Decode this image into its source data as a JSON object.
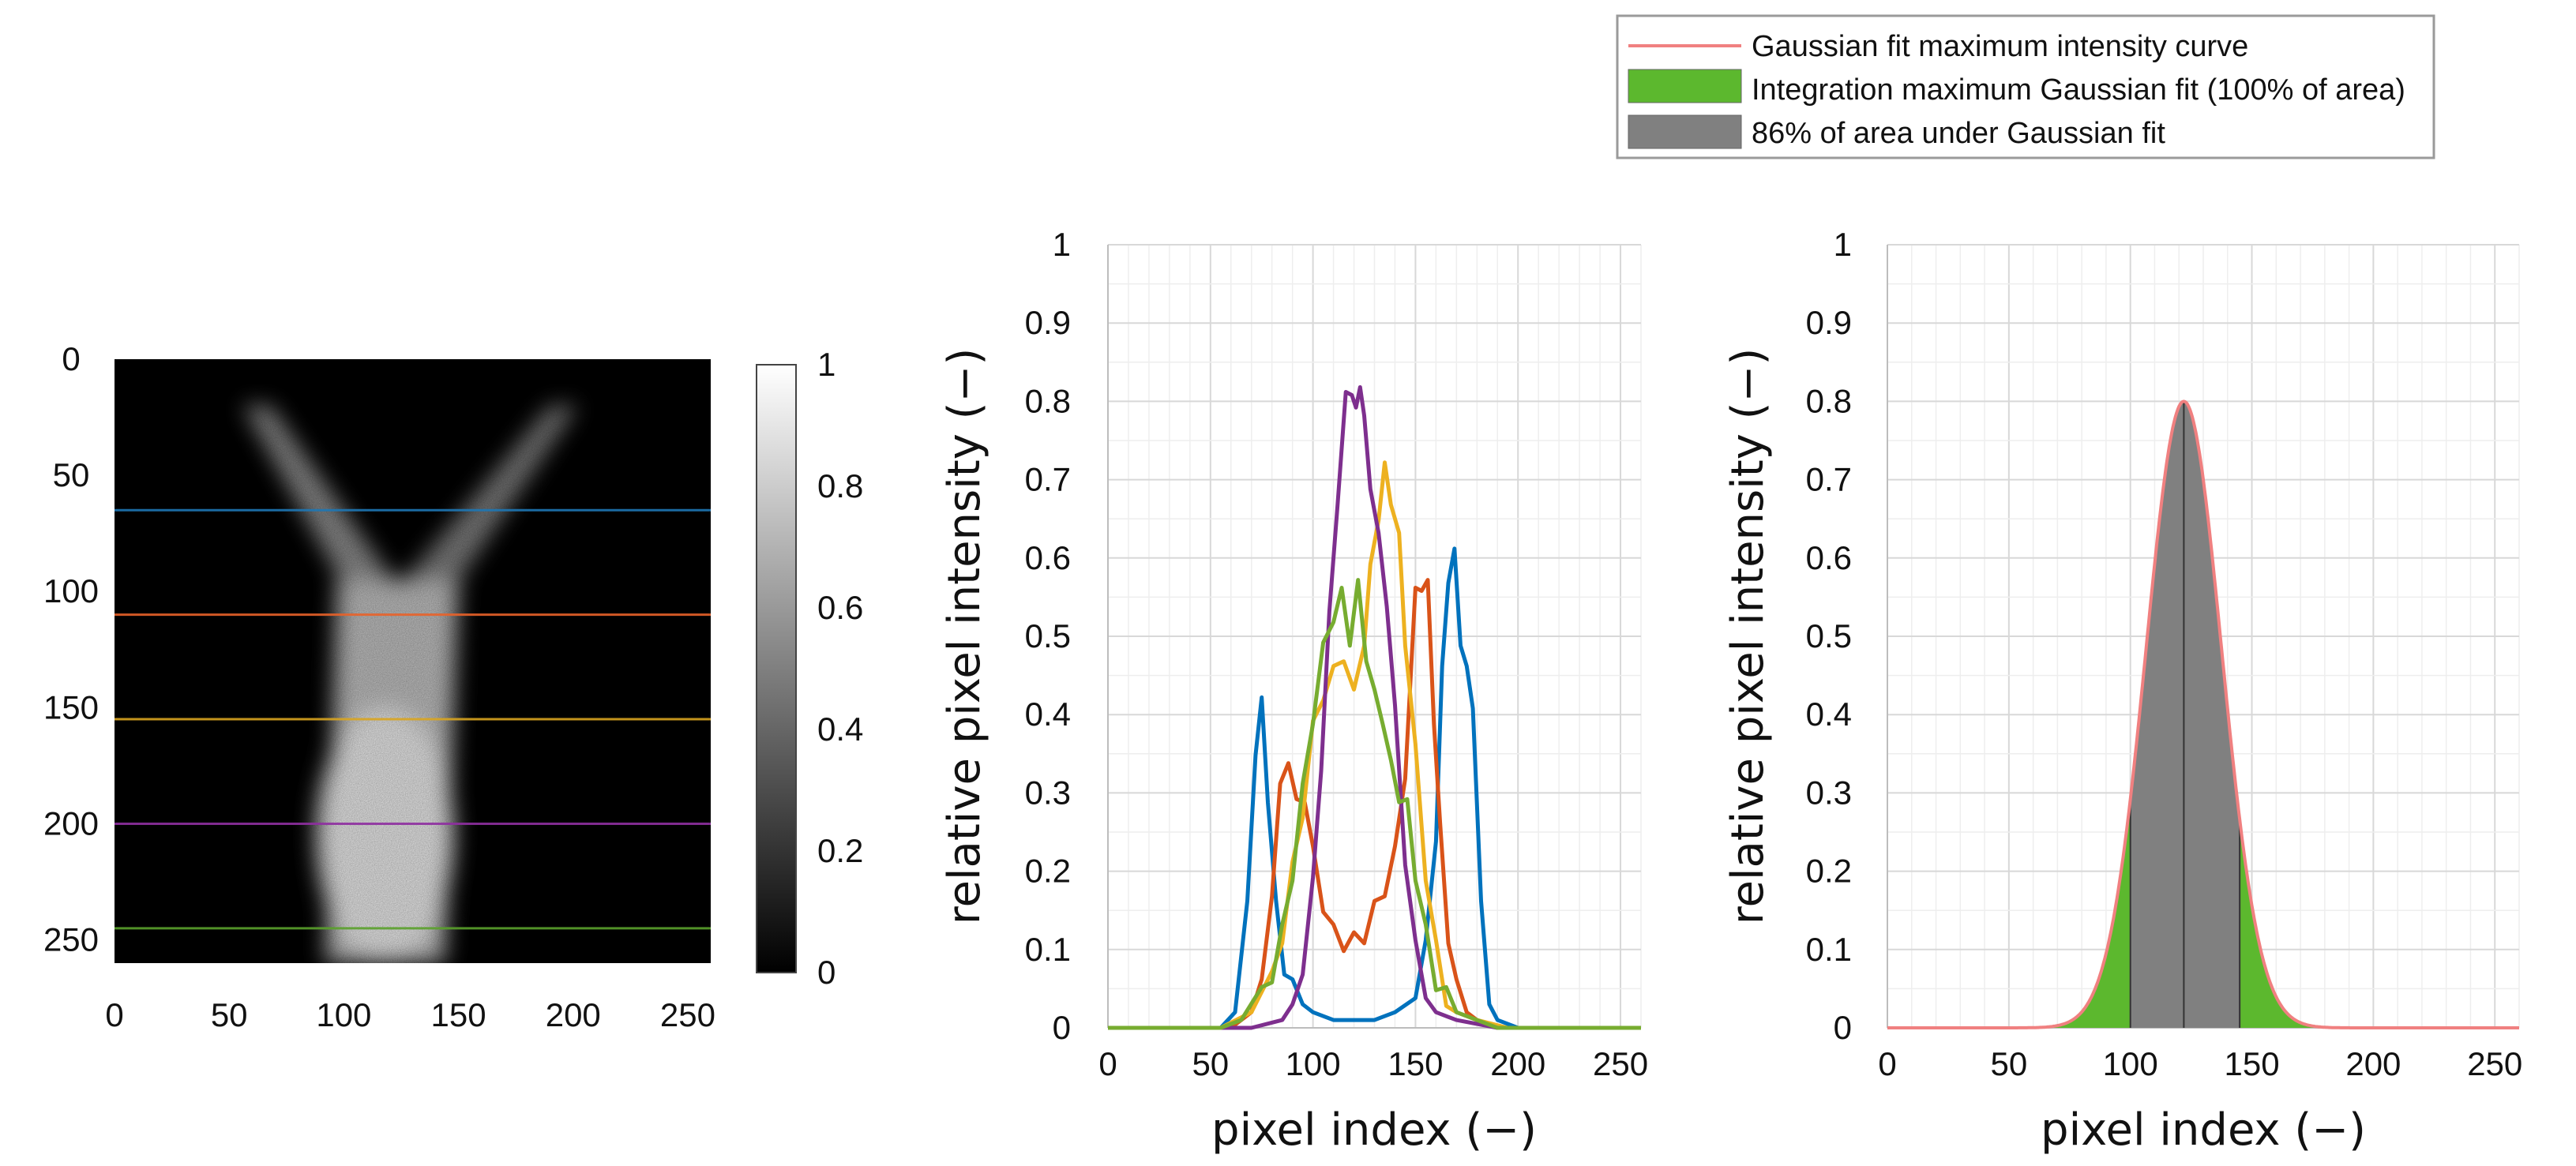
{
  "legend": {
    "items": [
      {
        "label": "Gaussian fit maximum intensity curve",
        "kind": "line",
        "color": "#f08080"
      },
      {
        "label": "Integration maximum Gaussian fit (100% of area)",
        "kind": "patch",
        "color": "#5cb82e"
      },
      {
        "label": "86% of area under Gaussian fit",
        "kind": "patch",
        "color": "#808080"
      }
    ],
    "placement": "top-right"
  },
  "chart_data": [
    {
      "type": "heatmap",
      "description_source": "intensity image",
      "xlim": [
        0,
        260
      ],
      "ylim": [
        0,
        260
      ],
      "x_ticks": [
        "0",
        "50",
        "100",
        "150",
        "200",
        "250"
      ],
      "y_ticks": [
        "0",
        "50",
        "100",
        "150",
        "200",
        "250"
      ],
      "colorbar": {
        "range": [
          0,
          1
        ],
        "ticks": [
          "0",
          "0.2",
          "0.4",
          "0.6",
          "0.8",
          "1"
        ]
      },
      "plume": {
        "jets_top_row": 20,
        "left_jet_x": 60,
        "right_jet_x": 198,
        "merge_center_x": 122
      },
      "profile_lines": [
        {
          "row": 65,
          "color": "#1f77b4"
        },
        {
          "row": 110,
          "color": "#e8622a"
        },
        {
          "row": 155,
          "color": "#d9a520"
        },
        {
          "row": 200,
          "color": "#8e2fa0"
        },
        {
          "row": 245,
          "color": "#5aa02c"
        }
      ]
    },
    {
      "type": "line",
      "xlabel": "pixel index (−)",
      "ylabel": "relative pixel intensity (−)",
      "xlim": [
        0,
        260
      ],
      "ylim": [
        0,
        1
      ],
      "x_ticks": [
        "0",
        "50",
        "100",
        "150",
        "200",
        "250"
      ],
      "y_ticks": [
        "0",
        "0.1",
        "0.2",
        "0.3",
        "0.4",
        "0.5",
        "0.6",
        "0.7",
        "0.8",
        "0.9",
        "1"
      ],
      "grid": true,
      "series": [
        {
          "name": "row 65",
          "color": "#0072bd",
          "x": [
            0,
            55,
            62,
            68,
            72,
            75,
            78,
            82,
            86,
            90,
            95,
            100,
            110,
            120,
            130,
            140,
            150,
            155,
            160,
            163,
            166,
            169,
            172,
            175,
            178,
            182,
            186,
            190,
            200,
            260
          ],
          "y": [
            0,
            0,
            0.02,
            0.15,
            0.36,
            0.41,
            0.3,
            0.15,
            0.08,
            0.05,
            0.03,
            0.02,
            0.01,
            0.01,
            0.01,
            0.02,
            0.05,
            0.1,
            0.25,
            0.45,
            0.58,
            0.6,
            0.5,
            0.45,
            0.42,
            0.15,
            0.03,
            0.01,
            0,
            0
          ]
        },
        {
          "name": "row 110",
          "color": "#d95319",
          "x": [
            0,
            60,
            70,
            75,
            80,
            84,
            88,
            92,
            96,
            100,
            105,
            110,
            115,
            120,
            125,
            130,
            135,
            140,
            145,
            150,
            153,
            156,
            159,
            162,
            166,
            170,
            175,
            180,
            190,
            200,
            260
          ],
          "y": [
            0,
            0,
            0.02,
            0.05,
            0.18,
            0.3,
            0.35,
            0.28,
            0.3,
            0.22,
            0.16,
            0.12,
            0.11,
            0.11,
            0.12,
            0.15,
            0.18,
            0.22,
            0.33,
            0.55,
            0.57,
            0.56,
            0.4,
            0.25,
            0.12,
            0.05,
            0.02,
            0.01,
            0,
            0,
            0
          ]
        },
        {
          "name": "row 155",
          "color": "#edb120",
          "x": [
            0,
            55,
            70,
            80,
            85,
            90,
            95,
            100,
            105,
            110,
            115,
            120,
            125,
            128,
            132,
            135,
            138,
            142,
            145,
            150,
            155,
            160,
            165,
            170,
            180,
            195,
            260
          ],
          "y": [
            0,
            0,
            0.02,
            0.06,
            0.12,
            0.2,
            0.28,
            0.38,
            0.43,
            0.45,
            0.48,
            0.42,
            0.5,
            0.58,
            0.66,
            0.71,
            0.68,
            0.62,
            0.5,
            0.35,
            0.2,
            0.1,
            0.04,
            0.02,
            0.01,
            0,
            0
          ]
        },
        {
          "name": "row 200",
          "color": "#7e2f8e",
          "x": [
            0,
            70,
            85,
            90,
            95,
            100,
            104,
            108,
            112,
            116,
            119,
            121,
            123,
            125,
            128,
            132,
            136,
            140,
            145,
            150,
            155,
            160,
            170,
            190,
            260
          ],
          "y": [
            0,
            0,
            0.01,
            0.03,
            0.08,
            0.18,
            0.34,
            0.52,
            0.68,
            0.8,
            0.82,
            0.78,
            0.83,
            0.77,
            0.7,
            0.62,
            0.55,
            0.4,
            0.22,
            0.1,
            0.05,
            0.02,
            0.01,
            0,
            0
          ]
        },
        {
          "name": "row 245",
          "color": "#77ac30",
          "x": [
            0,
            55,
            65,
            75,
            80,
            85,
            90,
            95,
            100,
            105,
            110,
            114,
            118,
            122,
            126,
            130,
            134,
            138,
            142,
            146,
            150,
            155,
            160,
            165,
            170,
            180,
            190,
            200,
            260
          ],
          "y": [
            0,
            0,
            0.01,
            0.04,
            0.07,
            0.12,
            0.2,
            0.3,
            0.4,
            0.48,
            0.53,
            0.55,
            0.5,
            0.56,
            0.48,
            0.42,
            0.4,
            0.33,
            0.3,
            0.28,
            0.2,
            0.12,
            0.06,
            0.04,
            0.02,
            0.01,
            0,
            0,
            0
          ]
        }
      ]
    },
    {
      "type": "area",
      "xlabel": "pixel index (−)",
      "ylabel": "relative pixel intensity (−)",
      "xlim": [
        0,
        260
      ],
      "ylim": [
        0,
        1
      ],
      "x_ticks": [
        "0",
        "50",
        "100",
        "150",
        "200",
        "250"
      ],
      "y_ticks": [
        "0",
        "0.1",
        "0.2",
        "0.3",
        "0.4",
        "0.5",
        "0.6",
        "0.7",
        "0.8",
        "0.9",
        "1"
      ],
      "grid": true,
      "gaussian": {
        "amplitude": 0.8,
        "center": 122,
        "sigma": 15.5
      },
      "integration_range": [
        0,
        260
      ],
      "central_86pct_range": [
        100,
        145
      ]
    }
  ]
}
